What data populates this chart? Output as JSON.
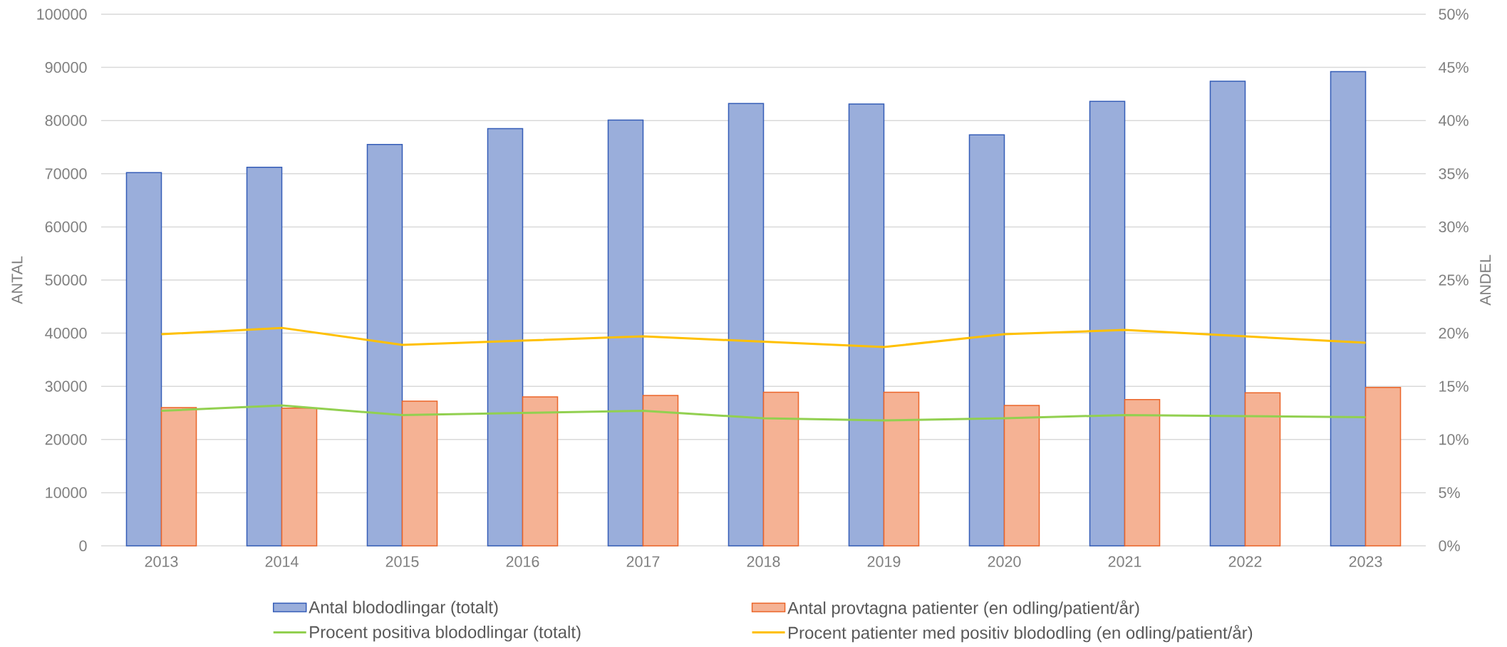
{
  "chart_data": {
    "type": "bar",
    "categories": [
      "2013",
      "2014",
      "2015",
      "2016",
      "2017",
      "2018",
      "2019",
      "2020",
      "2021",
      "2022",
      "2023"
    ],
    "series": [
      {
        "name": "Antal blododlingar (totalt)",
        "color": "#9aaedb",
        "values": [
          70200,
          71200,
          75500,
          78500,
          80100,
          83200,
          83100,
          77300,
          83600,
          87400,
          89200
        ]
      },
      {
        "name": "Antal provtagna patienter (en odling/patient/år)",
        "color": "#f5b294",
        "values": [
          26000,
          25900,
          27200,
          28000,
          28300,
          28900,
          28900,
          26400,
          27500,
          28800,
          29800
        ]
      },
      {
        "name": "Procent positiva blododlingar (totalt)",
        "type": "line",
        "axis": "y2",
        "color": "#92d050",
        "values": [
          12.7,
          13.2,
          12.3,
          12.5,
          12.7,
          12.0,
          11.8,
          12.0,
          12.3,
          12.2,
          12.1
        ]
      },
      {
        "name": "Procent patienter med positiv blododling (en odling/patient/år)",
        "type": "line",
        "axis": "y2",
        "color": "#ffc000",
        "values": [
          19.9,
          20.5,
          18.9,
          19.3,
          19.7,
          19.2,
          18.7,
          19.9,
          20.3,
          19.7,
          19.1
        ]
      }
    ],
    "ylabel": "ANTAL",
    "y2label": "ANDEL",
    "ylim": [
      0,
      100000
    ],
    "yticks": [
      0,
      10000,
      20000,
      30000,
      40000,
      50000,
      60000,
      70000,
      80000,
      90000,
      100000
    ],
    "y2lim": [
      0,
      50
    ],
    "y2ticks": [
      {
        "value": 0,
        "label": "0%"
      },
      {
        "value": 5,
        "label": "5%"
      },
      {
        "value": 10,
        "label": "10%"
      },
      {
        "value": 15,
        "label": "15%"
      },
      {
        "value": 20,
        "label": "20%"
      },
      {
        "value": 25,
        "label": "25%"
      },
      {
        "value": 30,
        "label": "30%"
      },
      {
        "value": 35,
        "label": "35%"
      },
      {
        "value": 40,
        "label": "40%"
      },
      {
        "value": 45,
        "label": "45%"
      },
      {
        "value": 50,
        "label": "50%"
      }
    ],
    "grid": "y",
    "legend": "bottom",
    "line_style": "solid"
  }
}
